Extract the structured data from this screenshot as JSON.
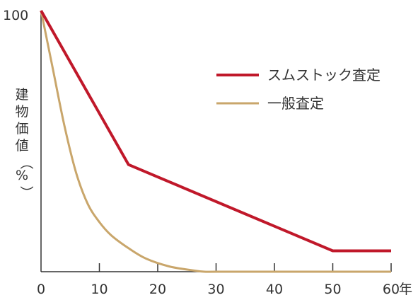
{
  "chart_data": {
    "type": "line",
    "title": "",
    "xlabel": "年",
    "ylabel": "建物価値（%）",
    "xlim": [
      0,
      60
    ],
    "ylim": [
      0,
      100
    ],
    "x_ticks": [
      0,
      10,
      20,
      30,
      40,
      50,
      60
    ],
    "x_tick_labels": [
      "0",
      "10",
      "20",
      "30",
      "40",
      "50",
      "60"
    ],
    "y_tick_labels": [
      "100"
    ],
    "grid": false,
    "legend_position": "top-right",
    "series": [
      {
        "name": "スムストック査定",
        "color": "#c0182a",
        "x": [
          0,
          15,
          50,
          60
        ],
        "y": [
          100,
          41,
          8,
          8
        ]
      },
      {
        "name": "一般査定",
        "color": "#c9a66b",
        "x": [
          0,
          2,
          4,
          6,
          8,
          10,
          12,
          15,
          18,
          22,
          26,
          28,
          30,
          40,
          50,
          60
        ],
        "y": [
          100,
          78,
          56,
          38,
          26,
          19,
          14,
          9,
          5,
          2,
          0.5,
          0,
          0,
          0,
          0,
          0
        ]
      }
    ]
  }
}
